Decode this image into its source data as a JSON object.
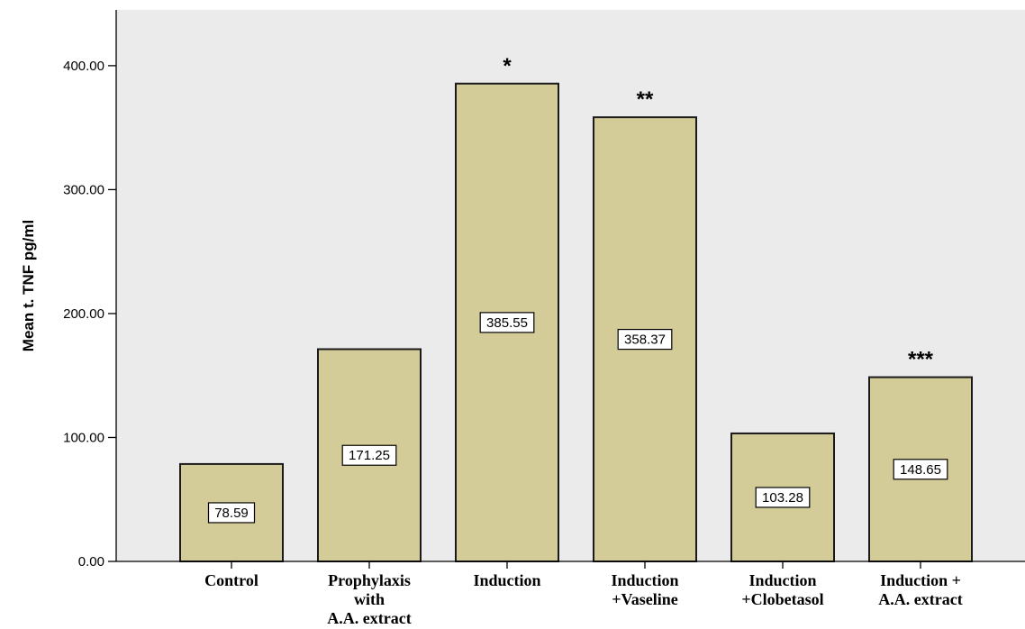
{
  "chart_data": {
    "type": "bar",
    "title": "",
    "xlabel": "",
    "ylabel": "Mean t. TNF pg/ml",
    "ylim": [
      0,
      445
    ],
    "yticks": [
      "0.00",
      "100.00",
      "200.00",
      "300.00",
      "400.00"
    ],
    "ytick_values": [
      0,
      100,
      200,
      300,
      400
    ],
    "categories": [
      [
        "Control"
      ],
      [
        "Prophylaxis",
        "with",
        "A.A. extract"
      ],
      [
        "Induction"
      ],
      [
        "Induction",
        "+Vaseline"
      ],
      [
        "Induction",
        "+Clobetasol"
      ],
      [
        "Induction +",
        "A.A. extract"
      ]
    ],
    "values": [
      78.59,
      171.25,
      385.55,
      358.37,
      103.28,
      148.65
    ],
    "data_labels": [
      "78.59",
      "171.25",
      "385.55",
      "358.37",
      "103.28",
      "148.65"
    ],
    "annotations": [
      "",
      "",
      "*",
      "**",
      "",
      "***"
    ],
    "grid": false,
    "legend": "none",
    "colors": {
      "bar_fill": "#d4cc98",
      "bar_stroke": "#1a1a1a",
      "plot_background": "#ebebeb",
      "axis": "#000000"
    }
  }
}
